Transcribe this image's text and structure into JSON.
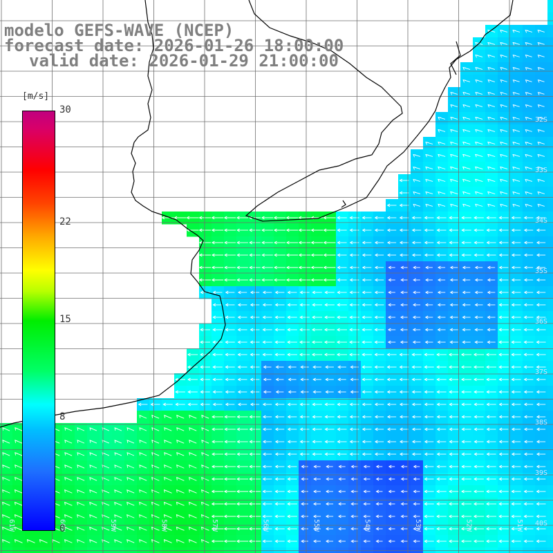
{
  "title": {
    "line1": "modelo GEFS-WAVE (NCEP)",
    "line2": "forecast date: 2026-01-26 18:00:00",
    "line3": "valid date: 2026-01-29 21:00:00"
  },
  "colorbar": {
    "unit": "[m/s]",
    "min": 0,
    "max": 30,
    "ticks": [
      {
        "value": 30,
        "label": "30"
      },
      {
        "value": 22,
        "label": "22"
      },
      {
        "value": 15,
        "label": "15"
      },
      {
        "value": 8,
        "label": "8"
      },
      {
        "value": 0,
        "label": "0"
      }
    ]
  },
  "map": {
    "lon_labels": [
      "61W",
      "60W",
      "59W",
      "58W",
      "57W",
      "56W",
      "55W",
      "54W",
      "53W",
      "52W",
      "51W"
    ],
    "lat_labels": [
      "32S",
      "33S",
      "34S",
      "35S",
      "36S",
      "37S",
      "38S",
      "39S",
      "40S"
    ],
    "colors": {
      "land": "#ffffff",
      "grid": "#6e6e6e",
      "coast": "#000000",
      "arrow": "#ffffff"
    }
  }
}
